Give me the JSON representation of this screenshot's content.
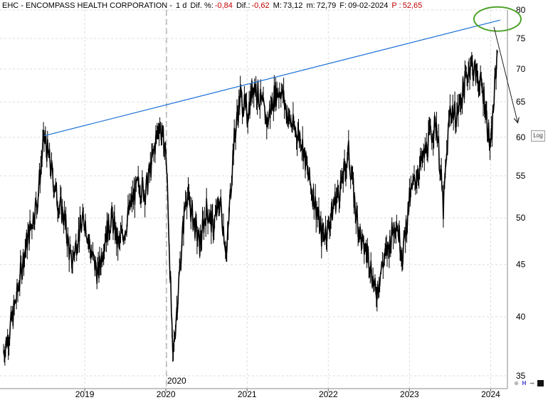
{
  "header": {
    "symbol_name": "EHC - ENCOMPASS HEALTH CORPORATION -",
    "timeframe": "1 d",
    "dif_pct_label": "Dif. %:",
    "dif_pct_value": "-0,84",
    "dif_label": "Dif.:",
    "dif_value": "-0,62",
    "max_label": "M:",
    "max_value": "73,12",
    "min_label": "m:",
    "min_value": "72,79",
    "date_label": "F:",
    "date_value": "09-02-2024",
    "p_label": "P :",
    "p_value": "52,65"
  },
  "controls": {
    "log_label": "Log",
    "zoom_label": "⊕",
    "h_label": "H",
    "arrow_label": "⊸"
  },
  "colors": {
    "price": "#000000",
    "trendline": "#1a6fd6",
    "highlight_ellipse": "#4ea32a",
    "grid": "#dddddd",
    "negative": "#c00000"
  },
  "chart_data": {
    "type": "line",
    "yscale": "log",
    "ylim": [
      34,
      80
    ],
    "y_ticks": [
      35,
      40,
      45,
      50,
      55,
      60,
      65,
      70,
      75,
      80
    ],
    "x_ticks": [
      "2019",
      "2020",
      "2021",
      "2022",
      "2023",
      "2024"
    ],
    "divider_label": "2020",
    "grid": true,
    "series": [
      {
        "x": [
          "2018-01",
          "2018-02",
          "2018-03",
          "2018-04",
          "2018-05",
          "2018-06",
          "2018-07",
          "2018-08",
          "2018-09",
          "2018-10",
          "2018-11",
          "2018-12",
          "2019-01",
          "2019-02",
          "2019-03",
          "2019-04",
          "2019-05",
          "2019-06",
          "2019-07",
          "2019-08",
          "2019-09",
          "2019-10",
          "2019-11",
          "2019-12",
          "2020-01",
          "2020-02",
          "2020-03",
          "2020-04",
          "2020-05",
          "2020-06",
          "2020-07",
          "2020-08",
          "2020-09",
          "2020-10",
          "2020-11",
          "2020-12",
          "2021-01",
          "2021-02",
          "2021-03",
          "2021-04",
          "2021-05",
          "2021-06",
          "2021-07",
          "2021-08",
          "2021-09",
          "2021-10",
          "2021-11",
          "2021-12",
          "2022-01",
          "2022-02",
          "2022-03",
          "2022-04",
          "2022-05",
          "2022-06",
          "2022-07",
          "2022-08",
          "2022-09",
          "2022-10",
          "2022-11",
          "2022-12",
          "2023-01",
          "2023-02",
          "2023-03",
          "2023-04",
          "2023-05",
          "2023-06",
          "2023-07",
          "2023-08",
          "2023-09",
          "2023-10",
          "2023-11",
          "2023-12",
          "2024-01",
          "2024-02"
        ],
        "values": [
          37,
          39,
          42,
          46,
          49,
          52,
          60,
          56,
          52,
          50,
          45,
          48,
          50,
          46,
          44,
          48,
          50,
          47,
          49,
          52,
          54,
          53,
          57,
          62,
          58,
          36,
          44,
          53,
          50,
          47,
          51,
          49,
          52,
          46,
          59,
          66,
          63,
          68,
          65,
          62,
          66,
          67,
          63,
          61,
          60,
          55,
          52,
          48,
          49,
          52,
          54,
          58,
          51,
          47,
          46,
          42,
          45,
          47,
          50,
          46,
          52,
          55,
          57,
          60,
          62,
          51,
          64,
          63,
          67,
          71,
          69,
          66,
          58,
          73
        ]
      }
    ],
    "annotations": [
      {
        "type": "trendline",
        "from": [
          "2018-07",
          60.2
        ],
        "to": [
          "2024-02",
          78.2
        ]
      },
      {
        "type": "ellipse",
        "center": [
          "2024-02",
          78.5
        ]
      },
      {
        "type": "arrow",
        "from": [
          "2024-02",
          77
        ],
        "to": [
          "2024-05",
          62
        ]
      }
    ]
  }
}
